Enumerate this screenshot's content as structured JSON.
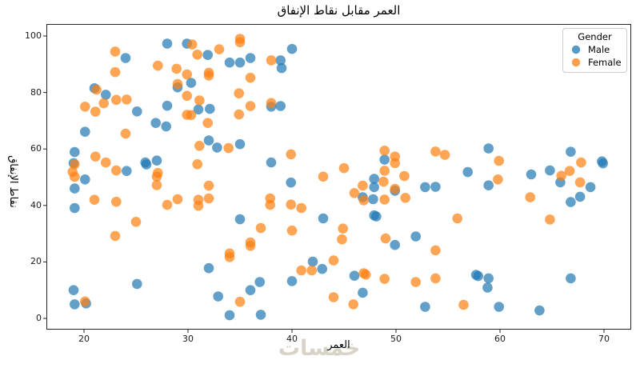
{
  "chart_data": {
    "type": "scatter",
    "title": "العمر مقابل نقاط الإنفاق",
    "xlabel": "العمر",
    "ylabel": "نقاط الإنفاق",
    "watermark": "خمسات",
    "x_ticks": [
      20,
      30,
      40,
      50,
      60,
      70
    ],
    "y_ticks": [
      0,
      20,
      40,
      60,
      80,
      100
    ],
    "xlim": [
      16.4,
      72.6
    ],
    "ylim": [
      -4,
      104.2
    ],
    "grid": false,
    "alpha": 0.7,
    "point_radius_px": 6.3,
    "legend": {
      "title": "Gender",
      "position": "upper right",
      "items": [
        {
          "name": "Male",
          "color": "#1f77b4"
        },
        {
          "name": "Female",
          "color": "#ff7f0e"
        }
      ]
    },
    "series": [
      {
        "name": "Male",
        "color": "#1f77b4",
        "points": [
          [
            24.0,
            92.2
          ],
          [
            28.0,
            97.3
          ],
          [
            29.9,
            97.3
          ],
          [
            40.0,
            95.4
          ],
          [
            31.9,
            93.3
          ],
          [
            34.0,
            90.6
          ],
          [
            35.0,
            90.6
          ],
          [
            36.0,
            92.2
          ],
          [
            38.9,
            91.4
          ],
          [
            39.0,
            88.6
          ],
          [
            21.0,
            81.5
          ],
          [
            22.1,
            79.2
          ],
          [
            29.0,
            81.8
          ],
          [
            30.3,
            83.4
          ],
          [
            25.1,
            73.3
          ],
          [
            28.0,
            75.3
          ],
          [
            26.9,
            69.2
          ],
          [
            27.9,
            68.0
          ],
          [
            20.1,
            66.1
          ],
          [
            19.1,
            58.9
          ],
          [
            19.0,
            55.0
          ],
          [
            25.9,
            55.2
          ],
          [
            26.0,
            54.5
          ],
          [
            27.0,
            55.9
          ],
          [
            24.1,
            52.2
          ],
          [
            38.0,
            75.0
          ],
          [
            38.9,
            75.2
          ],
          [
            31.0,
            74.0
          ],
          [
            32.1,
            74.2
          ],
          [
            32.0,
            63.0
          ],
          [
            32.8,
            60.5
          ],
          [
            35.0,
            61.7
          ],
          [
            38.0,
            55.2
          ],
          [
            48.9,
            56.2
          ],
          [
            56.9,
            51.8
          ],
          [
            58.9,
            60.2
          ],
          [
            66.8,
            59.0
          ],
          [
            69.8,
            55.6
          ],
          [
            69.9,
            54.9
          ],
          [
            64.8,
            52.4
          ],
          [
            63.0,
            51.0
          ],
          [
            20.1,
            49.2
          ],
          [
            19.1,
            46.0
          ],
          [
            19.1,
            39.1
          ],
          [
            25.1,
            12.2
          ],
          [
            19.0,
            10.0
          ],
          [
            19.1,
            5.0
          ],
          [
            20.2,
            5.3
          ],
          [
            39.9,
            48.1
          ],
          [
            35.0,
            35.1
          ],
          [
            43.0,
            35.4
          ],
          [
            32.0,
            17.8
          ],
          [
            42.0,
            20.1
          ],
          [
            42.9,
            17.5
          ],
          [
            36.9,
            12.9
          ],
          [
            40.0,
            13.2
          ],
          [
            36.0,
            10.0
          ],
          [
            32.9,
            7.8
          ],
          [
            34.0,
            1.1
          ],
          [
            37.0,
            1.3
          ],
          [
            47.9,
            49.4
          ],
          [
            47.9,
            46.5
          ],
          [
            49.9,
            45.2
          ],
          [
            46.8,
            42.9
          ],
          [
            47.8,
            42.2
          ],
          [
            52.8,
            46.5
          ],
          [
            53.8,
            46.6
          ],
          [
            47.9,
            36.5
          ],
          [
            48.1,
            36.1
          ],
          [
            49.9,
            26.0
          ],
          [
            51.9,
            29.0
          ],
          [
            46.0,
            15.1
          ],
          [
            46.8,
            9.1
          ],
          [
            52.8,
            4.1
          ],
          [
            58.9,
            47.1
          ],
          [
            65.8,
            48.2
          ],
          [
            68.7,
            46.5
          ],
          [
            67.7,
            43.1
          ],
          [
            66.8,
            41.2
          ],
          [
            57.7,
            15.4
          ],
          [
            57.9,
            15.0
          ],
          [
            58.9,
            14.2
          ],
          [
            58.8,
            10.9
          ],
          [
            66.8,
            14.2
          ],
          [
            59.9,
            4.1
          ],
          [
            63.8,
            2.8
          ]
        ]
      },
      {
        "name": "Female",
        "color": "#ff7f0e",
        "points": [
          [
            23.0,
            94.5
          ],
          [
            30.4,
            97.0
          ],
          [
            35.0,
            99.0
          ],
          [
            35.0,
            97.8
          ],
          [
            33.0,
            95.3
          ],
          [
            30.9,
            93.4
          ],
          [
            23.0,
            87.2
          ],
          [
            27.1,
            89.5
          ],
          [
            28.9,
            88.4
          ],
          [
            29.9,
            86.4
          ],
          [
            38.0,
            91.4
          ],
          [
            32.0,
            87.0
          ],
          [
            32.0,
            86.0
          ],
          [
            36.0,
            85.2
          ],
          [
            21.2,
            81.0
          ],
          [
            29.0,
            83.0
          ],
          [
            29.9,
            78.8
          ],
          [
            21.9,
            76.2
          ],
          [
            23.1,
            77.4
          ],
          [
            24.1,
            77.5
          ],
          [
            20.1,
            75.0
          ],
          [
            21.1,
            73.2
          ],
          [
            34.9,
            79.7
          ],
          [
            38.0,
            76.3
          ],
          [
            36.0,
            75.2
          ],
          [
            29.9,
            72.1
          ],
          [
            30.3,
            72.0
          ],
          [
            31.9,
            69.2
          ],
          [
            34.9,
            72.2
          ],
          [
            24.0,
            65.4
          ],
          [
            21.1,
            57.3
          ],
          [
            19.1,
            54.6
          ],
          [
            22.1,
            55.2
          ],
          [
            23.1,
            52.4
          ],
          [
            27.1,
            51.5
          ],
          [
            27.0,
            50.2
          ],
          [
            18.9,
            51.9
          ],
          [
            31.1,
            77.2
          ],
          [
            30.9,
            54.6
          ],
          [
            31.1,
            61.1
          ],
          [
            33.9,
            60.3
          ],
          [
            39.9,
            58.1
          ],
          [
            45.0,
            53.2
          ],
          [
            48.9,
            59.4
          ],
          [
            49.9,
            57.3
          ],
          [
            49.9,
            55.0
          ],
          [
            48.9,
            52.3
          ],
          [
            53.8,
            59.1
          ],
          [
            54.7,
            57.9
          ],
          [
            50.8,
            50.4
          ],
          [
            59.9,
            55.8
          ],
          [
            67.8,
            55.2
          ],
          [
            66.7,
            52.2
          ],
          [
            65.9,
            50.5
          ],
          [
            19.1,
            50.1
          ],
          [
            21.0,
            42.0
          ],
          [
            23.1,
            41.3
          ],
          [
            27.0,
            47.2
          ],
          [
            28.0,
            40.2
          ],
          [
            29.0,
            42.2
          ],
          [
            25.0,
            34.2
          ],
          [
            23.0,
            29.2
          ],
          [
            20.1,
            6.0
          ],
          [
            32.0,
            47.0
          ],
          [
            31.0,
            42.0
          ],
          [
            31.0,
            39.9
          ],
          [
            32.0,
            42.5
          ],
          [
            43.0,
            50.2
          ],
          [
            37.9,
            42.5
          ],
          [
            37.9,
            40.2
          ],
          [
            39.9,
            40.3
          ],
          [
            40.9,
            39.1
          ],
          [
            37.0,
            32.0
          ],
          [
            40.0,
            31.1
          ],
          [
            36.0,
            26.9
          ],
          [
            36.0,
            25.7
          ],
          [
            34.0,
            23.0
          ],
          [
            34.0,
            21.7
          ],
          [
            40.9,
            17.0
          ],
          [
            41.9,
            17.0
          ],
          [
            35.0,
            5.9
          ],
          [
            48.8,
            48.4
          ],
          [
            46.8,
            47.0
          ],
          [
            49.9,
            45.9
          ],
          [
            46.0,
            44.4
          ],
          [
            46.9,
            41.8
          ],
          [
            48.9,
            42.1
          ],
          [
            50.9,
            42.7
          ],
          [
            55.9,
            35.4
          ],
          [
            44.9,
            31.8
          ],
          [
            44.8,
            28.0
          ],
          [
            49.0,
            28.3
          ],
          [
            53.8,
            24.1
          ],
          [
            44.0,
            20.5
          ],
          [
            46.9,
            16.0
          ],
          [
            47.1,
            15.5
          ],
          [
            48.9,
            14.0
          ],
          [
            51.9,
            12.9
          ],
          [
            53.8,
            14.2
          ],
          [
            44.0,
            7.5
          ],
          [
            45.9,
            5.0
          ],
          [
            56.5,
            4.8
          ],
          [
            59.8,
            49.2
          ],
          [
            62.9,
            42.9
          ],
          [
            67.7,
            48.2
          ],
          [
            64.8,
            35.0
          ]
        ]
      }
    ]
  }
}
